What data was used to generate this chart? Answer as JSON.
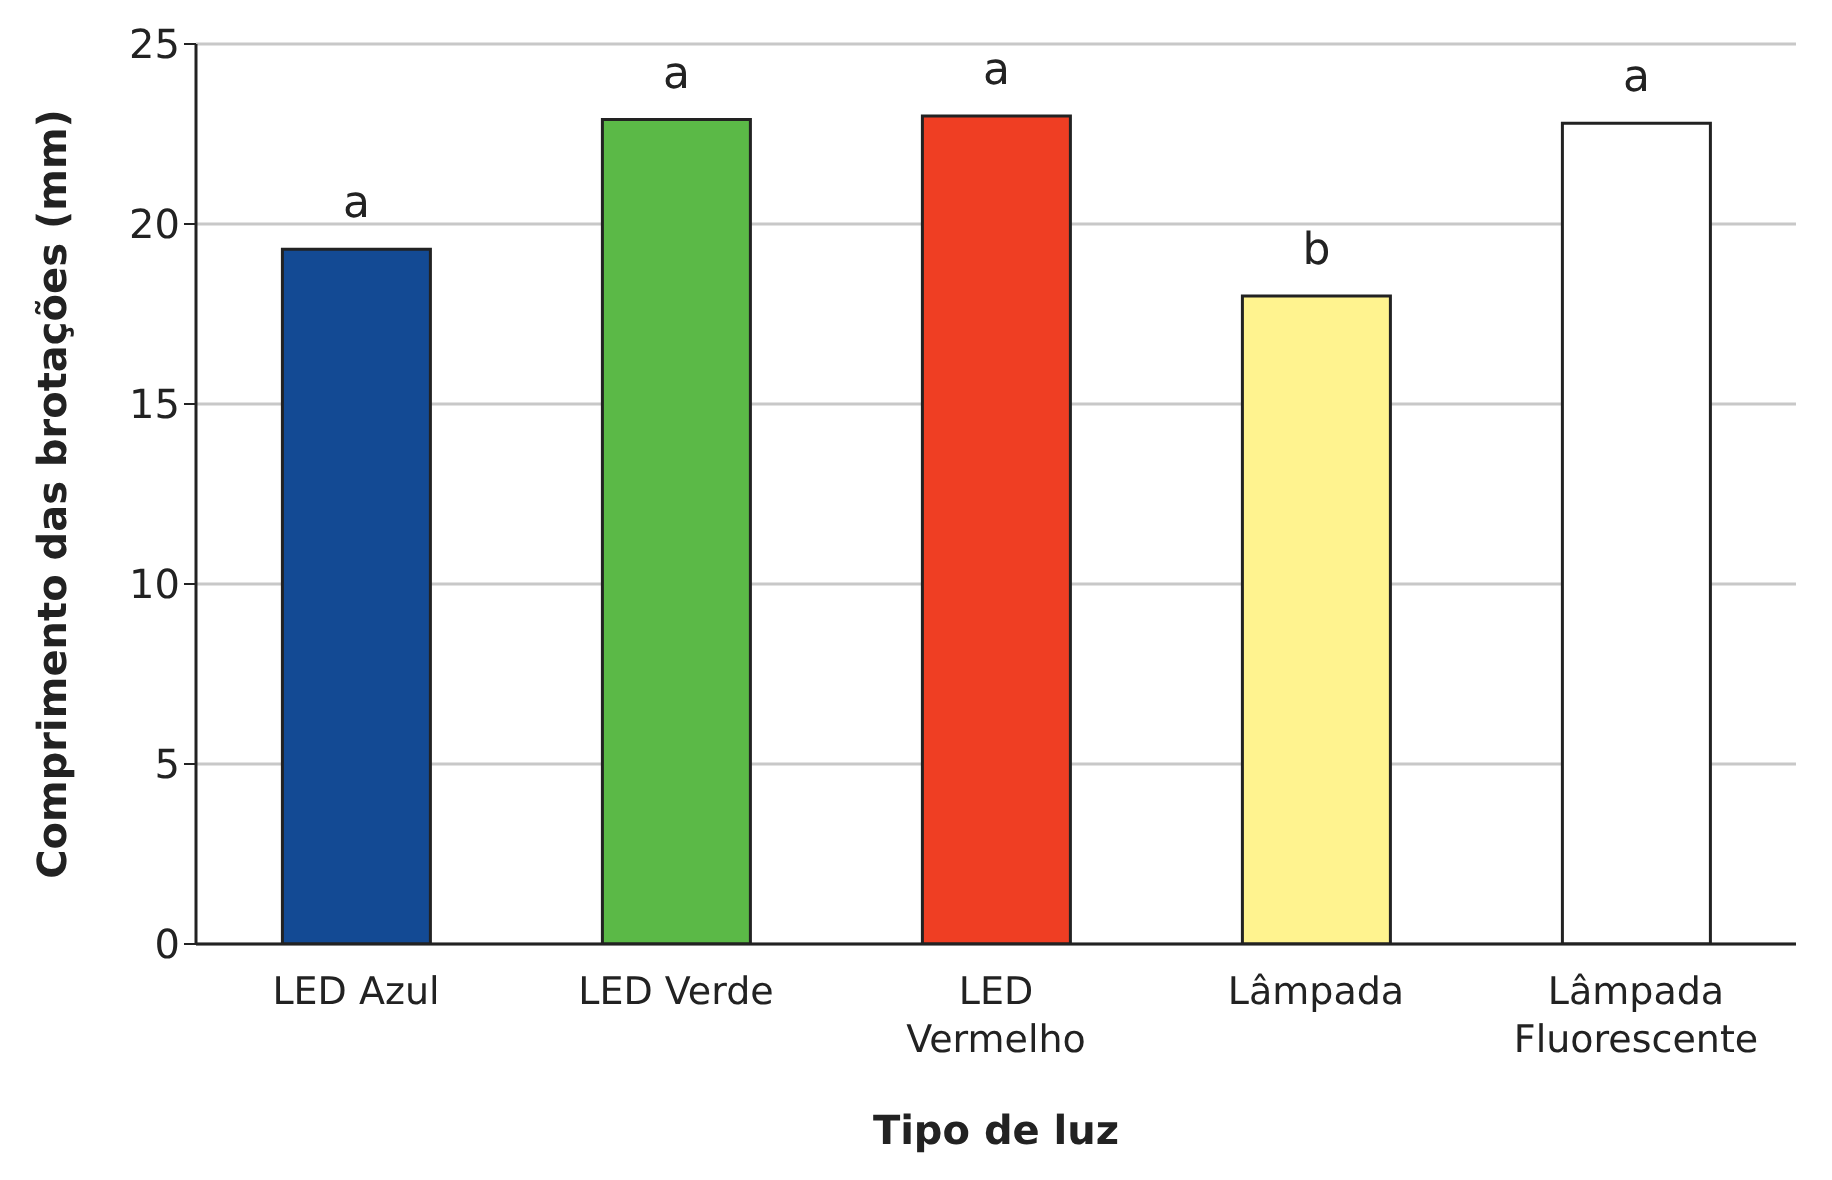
{
  "chart_data": {
    "type": "bar",
    "xlabel": "Tipo de luz",
    "ylabel": "Comprimento das brotações (mm)",
    "categories": [
      "LED Azul",
      "LED Verde",
      "LED Vermelho",
      "Lâmpada",
      "Lâmpada Fluorescente"
    ],
    "values": [
      19.3,
      22.9,
      23.0,
      18.0,
      22.8
    ],
    "colors": [
      "#134a94",
      "#5bb947",
      "#ef3e23",
      "#fff38f",
      "#ffffff"
    ],
    "ylim": [
      0,
      25
    ],
    "yticks": [
      0,
      5,
      10,
      15,
      20,
      25
    ],
    "grid": "y",
    "legend": false,
    "annotations": [
      "a",
      "a",
      "a",
      "b",
      "a"
    ]
  }
}
